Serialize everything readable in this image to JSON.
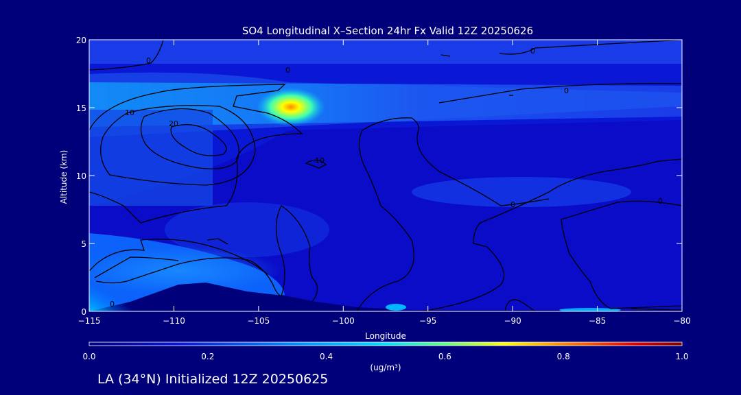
{
  "chart_data": {
    "type": "heatmap",
    "title": "SO4 Longitudinal X–Section 24hr  Fx Valid 12Z 20250626",
    "xlabel": "Longitude",
    "ylabel": "Altitude (km)",
    "xlim": [
      -115,
      -80
    ],
    "ylim": [
      0,
      20
    ],
    "x_ticks": [
      -115,
      -110,
      -105,
      -100,
      -95,
      -90,
      -85,
      -80
    ],
    "x_tick_labels": [
      "−115",
      "−110",
      "−105",
      "−100",
      "−95",
      "−90",
      "−85",
      "−80"
    ],
    "y_ticks": [
      0,
      5,
      10,
      15,
      20
    ],
    "y_tick_labels": [
      "0",
      "5",
      "10",
      "15",
      "20"
    ],
    "colorbar": {
      "min": 0.0,
      "max": 1.0,
      "ticks": [
        0.0,
        0.2,
        0.4,
        0.6,
        0.8,
        1.0
      ],
      "tick_labels": [
        "0.0",
        "0.2",
        "0.4",
        "0.6",
        "0.8",
        "1.0"
      ],
      "unit_label": "(ug/m³)"
    },
    "contour_labels": [
      "0",
      "0",
      "0",
      "10",
      "10",
      "20",
      "0",
      "0",
      "0",
      "0"
    ],
    "colors": {
      "background": "#00007b",
      "low": "#0a14d8",
      "mid": "#00c8ff",
      "high": "#ffff00",
      "max": "#8b0000"
    }
  },
  "footer": {
    "text": "LA (34°N) Initialized 12Z 20250625"
  }
}
